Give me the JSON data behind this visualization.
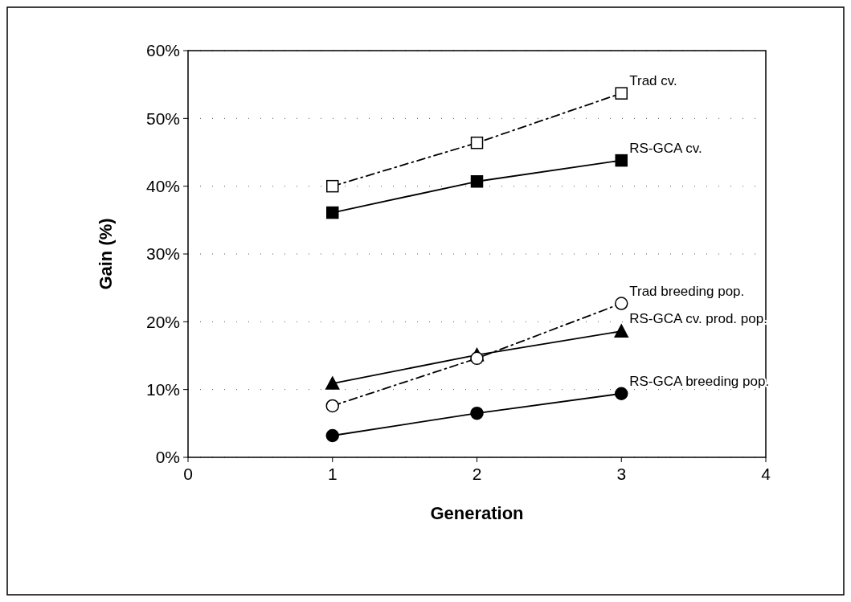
{
  "chart_data": {
    "type": "line",
    "xlabel": "Generation",
    "ylabel": "Gain (%)",
    "x": [
      1,
      2,
      3
    ],
    "xlim": [
      0,
      4
    ],
    "xticks": [
      0,
      1,
      2,
      3,
      4
    ],
    "ylim": [
      0,
      60
    ],
    "yticks": [
      {
        "value": 0,
        "label": "0%"
      },
      {
        "value": 10,
        "label": "10%"
      },
      {
        "value": 20,
        "label": "20%"
      },
      {
        "value": 30,
        "label": "30%"
      },
      {
        "value": 40,
        "label": "40%"
      },
      {
        "value": 50,
        "label": "50%"
      },
      {
        "value": 60,
        "label": "60%"
      }
    ],
    "grid": "y",
    "series": [
      {
        "name": "Trad cv.",
        "color": "#000000",
        "marker": "square",
        "line_style": "dashed",
        "values": [
          40,
          46.4,
          53.7
        ]
      },
      {
        "name": "RS-GCA cv.",
        "color": "#000000",
        "marker": "square",
        "line_style": "solid",
        "values": [
          36.1,
          40.7,
          43.8
        ]
      },
      {
        "name": "Trad breeding pop.",
        "color": "#000000",
        "marker": "circle",
        "line_style": "dashed",
        "values": [
          7.6,
          14.6,
          22.7
        ]
      },
      {
        "name": "RS-GCA cv. prod. pop.",
        "color": "#000000",
        "marker": "triangle",
        "line_style": "solid",
        "values": [
          10.9,
          15.1,
          18.6
        ]
      },
      {
        "name": "RS-GCA breeding pop.",
        "color": "#000000",
        "marker": "circle",
        "line_style": "solid",
        "values": [
          3.2,
          6.5,
          9.4
        ]
      }
    ]
  }
}
